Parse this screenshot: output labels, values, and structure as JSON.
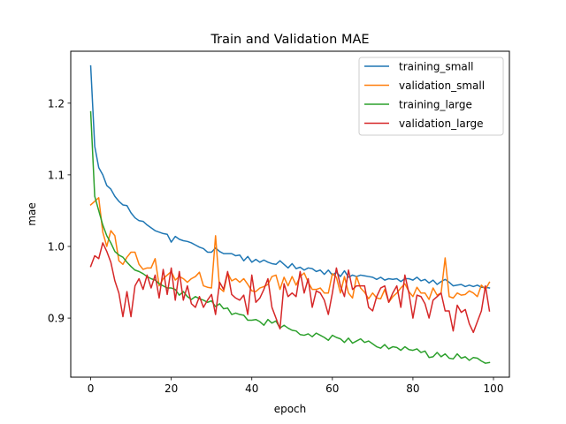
{
  "chart_data": {
    "type": "line",
    "title": "Train and Validation MAE",
    "xlabel": "epoch",
    "ylabel": "mae",
    "xlim": [
      -4.95,
      103.95
    ],
    "ylim": [
      0.8175,
      1.2725
    ],
    "xticks": [
      0,
      20,
      40,
      60,
      80,
      100
    ],
    "yticks": [
      0.9,
      1.0,
      1.1,
      1.2
    ],
    "ytick_labels": [
      "0.9",
      "1.0",
      "1.1",
      "1.2"
    ],
    "grid": false,
    "legend_position": "top-right",
    "series": [
      {
        "name": "training_small",
        "color": "#1f77b4",
        "values": [
          1.252,
          1.14,
          1.11,
          1.1,
          1.085,
          1.08,
          1.07,
          1.063,
          1.058,
          1.057,
          1.047,
          1.04,
          1.036,
          1.035,
          1.03,
          1.026,
          1.022,
          1.02,
          1.018,
          1.017,
          1.006,
          1.014,
          1.01,
          1.008,
          1.007,
          1.005,
          1.002,
          0.999,
          0.997,
          0.992,
          0.992,
          0.998,
          0.993,
          0.99,
          0.99,
          0.99,
          0.987,
          0.988,
          0.98,
          0.986,
          0.978,
          0.982,
          0.978,
          0.981,
          0.978,
          0.976,
          0.975,
          0.98,
          0.975,
          0.97,
          0.976,
          0.969,
          0.971,
          0.967,
          0.97,
          0.969,
          0.965,
          0.967,
          0.961,
          0.967,
          0.96,
          0.964,
          0.958,
          0.966,
          0.957,
          0.96,
          0.958,
          0.96,
          0.959,
          0.958,
          0.957,
          0.954,
          0.957,
          0.953,
          0.955,
          0.954,
          0.955,
          0.951,
          0.955,
          0.955,
          0.953,
          0.957,
          0.952,
          0.954,
          0.949,
          0.953,
          0.947,
          0.951,
          0.954,
          0.95,
          0.945,
          0.946,
          0.947,
          0.944,
          0.946,
          0.944,
          0.946,
          0.943,
          0.943,
          0.942
        ]
      },
      {
        "name": "validation_small",
        "color": "#ff7f0e",
        "values": [
          1.058,
          1.063,
          1.068,
          1.02,
          1.0,
          1.022,
          1.015,
          0.98,
          0.975,
          0.985,
          0.992,
          0.992,
          0.975,
          0.968,
          0.97,
          0.97,
          0.983,
          0.945,
          0.955,
          0.96,
          0.965,
          0.953,
          0.958,
          0.955,
          0.95,
          0.955,
          0.958,
          0.964,
          0.945,
          0.943,
          0.942,
          1.015,
          0.942,
          0.937,
          0.963,
          0.952,
          0.955,
          0.95,
          0.955,
          0.947,
          0.938,
          0.937,
          0.942,
          0.944,
          0.947,
          0.958,
          0.96,
          0.94,
          0.957,
          0.945,
          0.958,
          0.946,
          0.958,
          0.963,
          0.95,
          0.94,
          0.94,
          0.942,
          0.935,
          0.935,
          0.962,
          0.957,
          0.935,
          0.958,
          0.935,
          0.928,
          0.958,
          0.942,
          0.936,
          0.927,
          0.935,
          0.928,
          0.927,
          0.94,
          0.922,
          0.93,
          0.935,
          0.942,
          0.948,
          0.937,
          0.93,
          0.943,
          0.935,
          0.935,
          0.926,
          0.942,
          0.932,
          0.935,
          0.984,
          0.93,
          0.928,
          0.935,
          0.932,
          0.933,
          0.938,
          0.935,
          0.93,
          0.946,
          0.94,
          0.95
        ]
      },
      {
        "name": "training_large",
        "color": "#2ca02c",
        "values": [
          1.188,
          1.07,
          1.05,
          1.03,
          1.015,
          1.005,
          0.993,
          0.988,
          0.985,
          0.978,
          0.972,
          0.967,
          0.965,
          0.962,
          0.958,
          0.955,
          0.953,
          0.948,
          0.945,
          0.942,
          0.942,
          0.94,
          0.932,
          0.937,
          0.93,
          0.926,
          0.93,
          0.927,
          0.925,
          0.922,
          0.924,
          0.916,
          0.92,
          0.913,
          0.914,
          0.905,
          0.907,
          0.905,
          0.904,
          0.897,
          0.897,
          0.898,
          0.895,
          0.89,
          0.898,
          0.893,
          0.896,
          0.886,
          0.89,
          0.886,
          0.883,
          0.882,
          0.877,
          0.876,
          0.878,
          0.874,
          0.879,
          0.876,
          0.873,
          0.869,
          0.876,
          0.873,
          0.871,
          0.866,
          0.872,
          0.865,
          0.868,
          0.871,
          0.866,
          0.868,
          0.864,
          0.86,
          0.858,
          0.863,
          0.857,
          0.86,
          0.859,
          0.855,
          0.86,
          0.856,
          0.855,
          0.857,
          0.852,
          0.854,
          0.845,
          0.846,
          0.852,
          0.846,
          0.85,
          0.844,
          0.843,
          0.85,
          0.844,
          0.846,
          0.841,
          0.845,
          0.844,
          0.84,
          0.837,
          0.838
        ]
      },
      {
        "name": "validation_large",
        "color": "#d62728",
        "values": [
          0.972,
          0.987,
          0.983,
          1.005,
          0.993,
          0.978,
          0.952,
          0.935,
          0.902,
          0.937,
          0.902,
          0.945,
          0.955,
          0.94,
          0.96,
          0.942,
          0.96,
          0.928,
          0.968,
          0.933,
          0.97,
          0.925,
          0.965,
          0.925,
          0.945,
          0.92,
          0.915,
          0.93,
          0.915,
          0.925,
          0.933,
          0.905,
          0.95,
          0.94,
          0.965,
          0.933,
          0.928,
          0.925,
          0.932,
          0.905,
          0.96,
          0.922,
          0.928,
          0.94,
          0.955,
          0.915,
          0.9,
          0.885,
          0.948,
          0.93,
          0.935,
          0.93,
          0.965,
          0.935,
          0.955,
          0.915,
          0.938,
          0.935,
          0.925,
          0.905,
          0.935,
          0.97,
          0.945,
          0.93,
          0.967,
          0.94,
          0.945,
          0.945,
          0.945,
          0.915,
          0.91,
          0.93,
          0.942,
          0.945,
          0.922,
          0.935,
          0.945,
          0.915,
          0.96,
          0.935,
          0.9,
          0.932,
          0.93,
          0.92,
          0.9,
          0.925,
          0.93,
          0.935,
          0.91,
          0.91,
          0.882,
          0.918,
          0.908,
          0.912,
          0.892,
          0.88,
          0.895,
          0.91,
          0.945,
          0.91
        ]
      }
    ]
  }
}
